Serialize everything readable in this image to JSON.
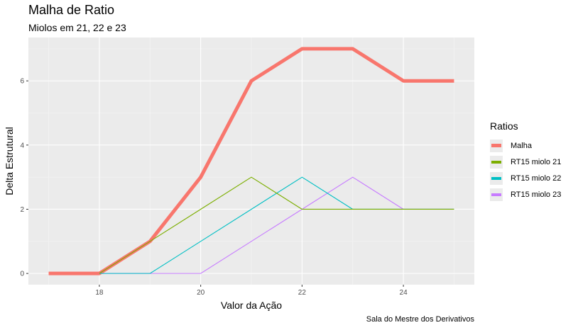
{
  "chart_data": {
    "type": "line",
    "title": "Malha de Ratio",
    "subtitle": "Miolos em 21, 22 e 23",
    "caption": "Sala do Mestre dos Derivativos",
    "xlabel": "Valor da Ação",
    "ylabel": "Delta Estrutural",
    "xlim": [
      16.6,
      25.4
    ],
    "ylim": [
      -0.35,
      7.35
    ],
    "xticks": [
      18,
      20,
      22,
      24
    ],
    "yticks": [
      0,
      2,
      4,
      6
    ],
    "legend_title": "Ratios",
    "x": [
      17,
      18,
      19,
      20,
      21,
      22,
      23,
      24,
      25
    ],
    "series": [
      {
        "name": "Malha",
        "color": "#F8766D",
        "width": "thick",
        "values": [
          0,
          0,
          1,
          3,
          6,
          7,
          7,
          6,
          6
        ]
      },
      {
        "name": "RT15 miolo 21",
        "color": "#7CAE00",
        "width": "thin",
        "values": [
          null,
          0,
          1,
          2,
          3,
          2,
          2,
          2,
          2
        ]
      },
      {
        "name": "RT15 miolo 22",
        "color": "#00BFC4",
        "width": "thin",
        "values": [
          null,
          0,
          0,
          1,
          2,
          3,
          2,
          2,
          2
        ]
      },
      {
        "name": "RT15 miolo 23",
        "color": "#C77CFF",
        "width": "thin",
        "values": [
          null,
          0,
          0,
          0,
          1,
          2,
          3,
          2,
          2
        ]
      }
    ]
  }
}
